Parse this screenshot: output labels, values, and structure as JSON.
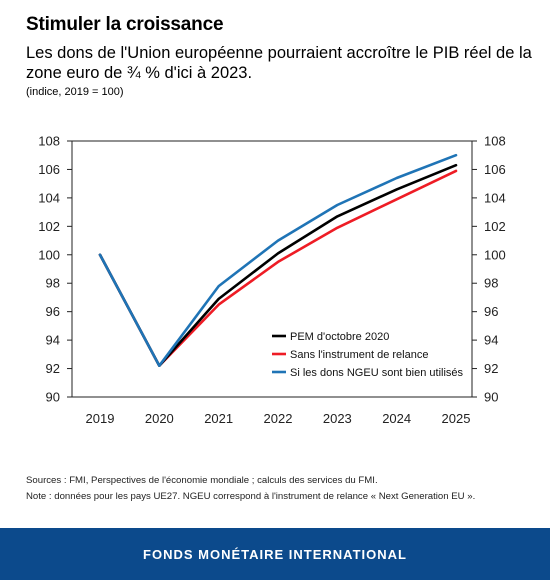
{
  "header": {
    "title": "Stimuler la croissance",
    "subtitle": "Les dons de l'Union européenne pourraient accroître le PIB réel de la zone euro de  ¾ % d'ici à 2023.",
    "unit": "(indice, 2019 = 100)"
  },
  "notes": {
    "sources": "Sources : FMI, Perspectives de l'économie mondiale ; calculs des services du FMI.",
    "note": "Note : données pour les pays UE27. NGEU correspond à l'instrument de relance « Next Generation EU »."
  },
  "footer": {
    "label": "FONDS MONÉTAIRE INTERNATIONAL"
  },
  "chart_data": {
    "type": "line",
    "x": [
      "2019",
      "2020",
      "2021",
      "2022",
      "2023",
      "2024",
      "2025"
    ],
    "ylim": [
      90,
      108
    ],
    "yticks": [
      90,
      92,
      94,
      96,
      98,
      100,
      102,
      104,
      106,
      108
    ],
    "grid": false,
    "dual_y_axis": true,
    "legend_position": "bottom-right inside",
    "series": [
      {
        "name": "PEM d'octobre 2020",
        "color": "#000000",
        "values": [
          100,
          92.2,
          96.9,
          100.1,
          102.7,
          104.6,
          106.3
        ]
      },
      {
        "name": "Sans l'instrument de relance",
        "color": "#ee1c25",
        "values": [
          100,
          92.2,
          96.5,
          99.5,
          101.9,
          103.9,
          105.9
        ]
      },
      {
        "name": "Si les dons NGEU sont bien utilisés",
        "color": "#1f74b6",
        "values": [
          100,
          92.2,
          97.8,
          101.0,
          103.5,
          105.4,
          107.0
        ]
      }
    ]
  }
}
